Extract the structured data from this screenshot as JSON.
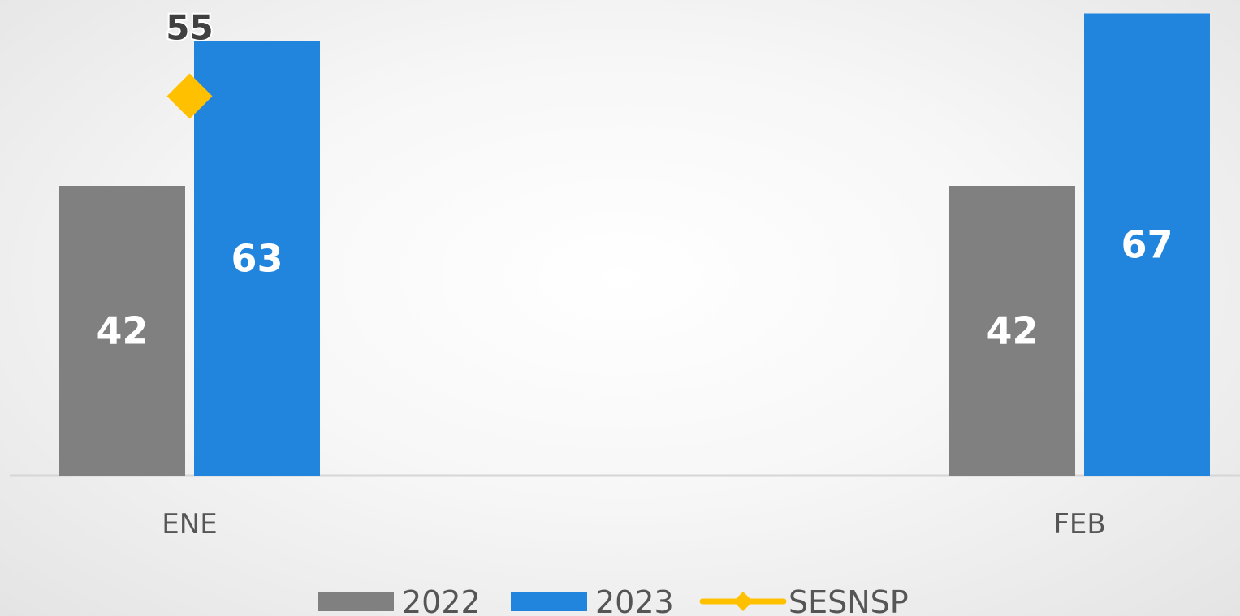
{
  "chart_data": {
    "type": "bar",
    "categories": [
      "ENE",
      "FEB"
    ],
    "series": [
      {
        "name": "2022",
        "kind": "bar",
        "color": "#808080",
        "values": [
          42,
          42
        ]
      },
      {
        "name": "2023",
        "kind": "bar",
        "color": "#2185de",
        "values": [
          63,
          67
        ]
      },
      {
        "name": "SESNSP",
        "kind": "line-marker",
        "color": "#ffc000",
        "values": [
          55,
          null
        ]
      }
    ],
    "ylim": [
      0,
      68
    ],
    "grid": false,
    "legend": "bottom",
    "title": "",
    "xlabel": "",
    "ylabel": ""
  }
}
